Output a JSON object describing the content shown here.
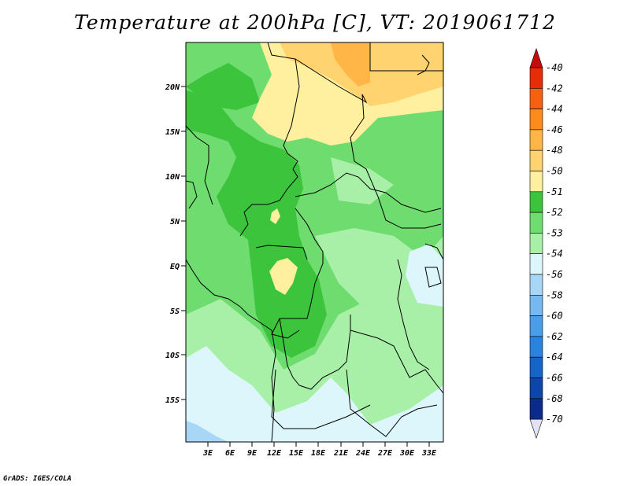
{
  "title": "Temperature at 200hPa [C], VT: 2019061712",
  "footer": "GrADS: IGES/COLA",
  "map": {
    "lat_labels": [
      "20N",
      "15N",
      "10N",
      "5N",
      "EQ",
      "5S",
      "10S",
      "15S"
    ],
    "lon_labels": [
      "3E",
      "6E",
      "9E",
      "12E",
      "15E",
      "18E",
      "21E",
      "24E",
      "27E",
      "30E",
      "33E"
    ]
  },
  "colorbar": {
    "labels": [
      "-40",
      "-42",
      "-44",
      "-46",
      "-48",
      "-50",
      "-51",
      "-52",
      "-53",
      "-54",
      "-56",
      "-58",
      "-60",
      "-62",
      "-64",
      "-66",
      "-68",
      "-70"
    ],
    "colors": [
      "#e2e2f5",
      "#0a0a6e",
      "#0b2a8c",
      "#0d46ab",
      "#1565c9",
      "#2b83e0",
      "#4a9ee8",
      "#75b9f0",
      "#a8d6f6",
      "#dcf6fc",
      "#a8f0a8",
      "#6edc6e",
      "#3cc43c",
      "#fff0a0",
      "#ffd470",
      "#ffb646",
      "#ff8c1a",
      "#f86010",
      "#e82c08",
      "#c80a0a"
    ]
  },
  "palette": {
    "t50": "#fff0a0",
    "t48": "#ffd470",
    "t46": "#ffb646",
    "t51": "#3cc43c",
    "t52": "#6edc6e",
    "t53": "#a8f0a8",
    "t54": "#dcf6fc",
    "t56": "#a8d6f6"
  }
}
